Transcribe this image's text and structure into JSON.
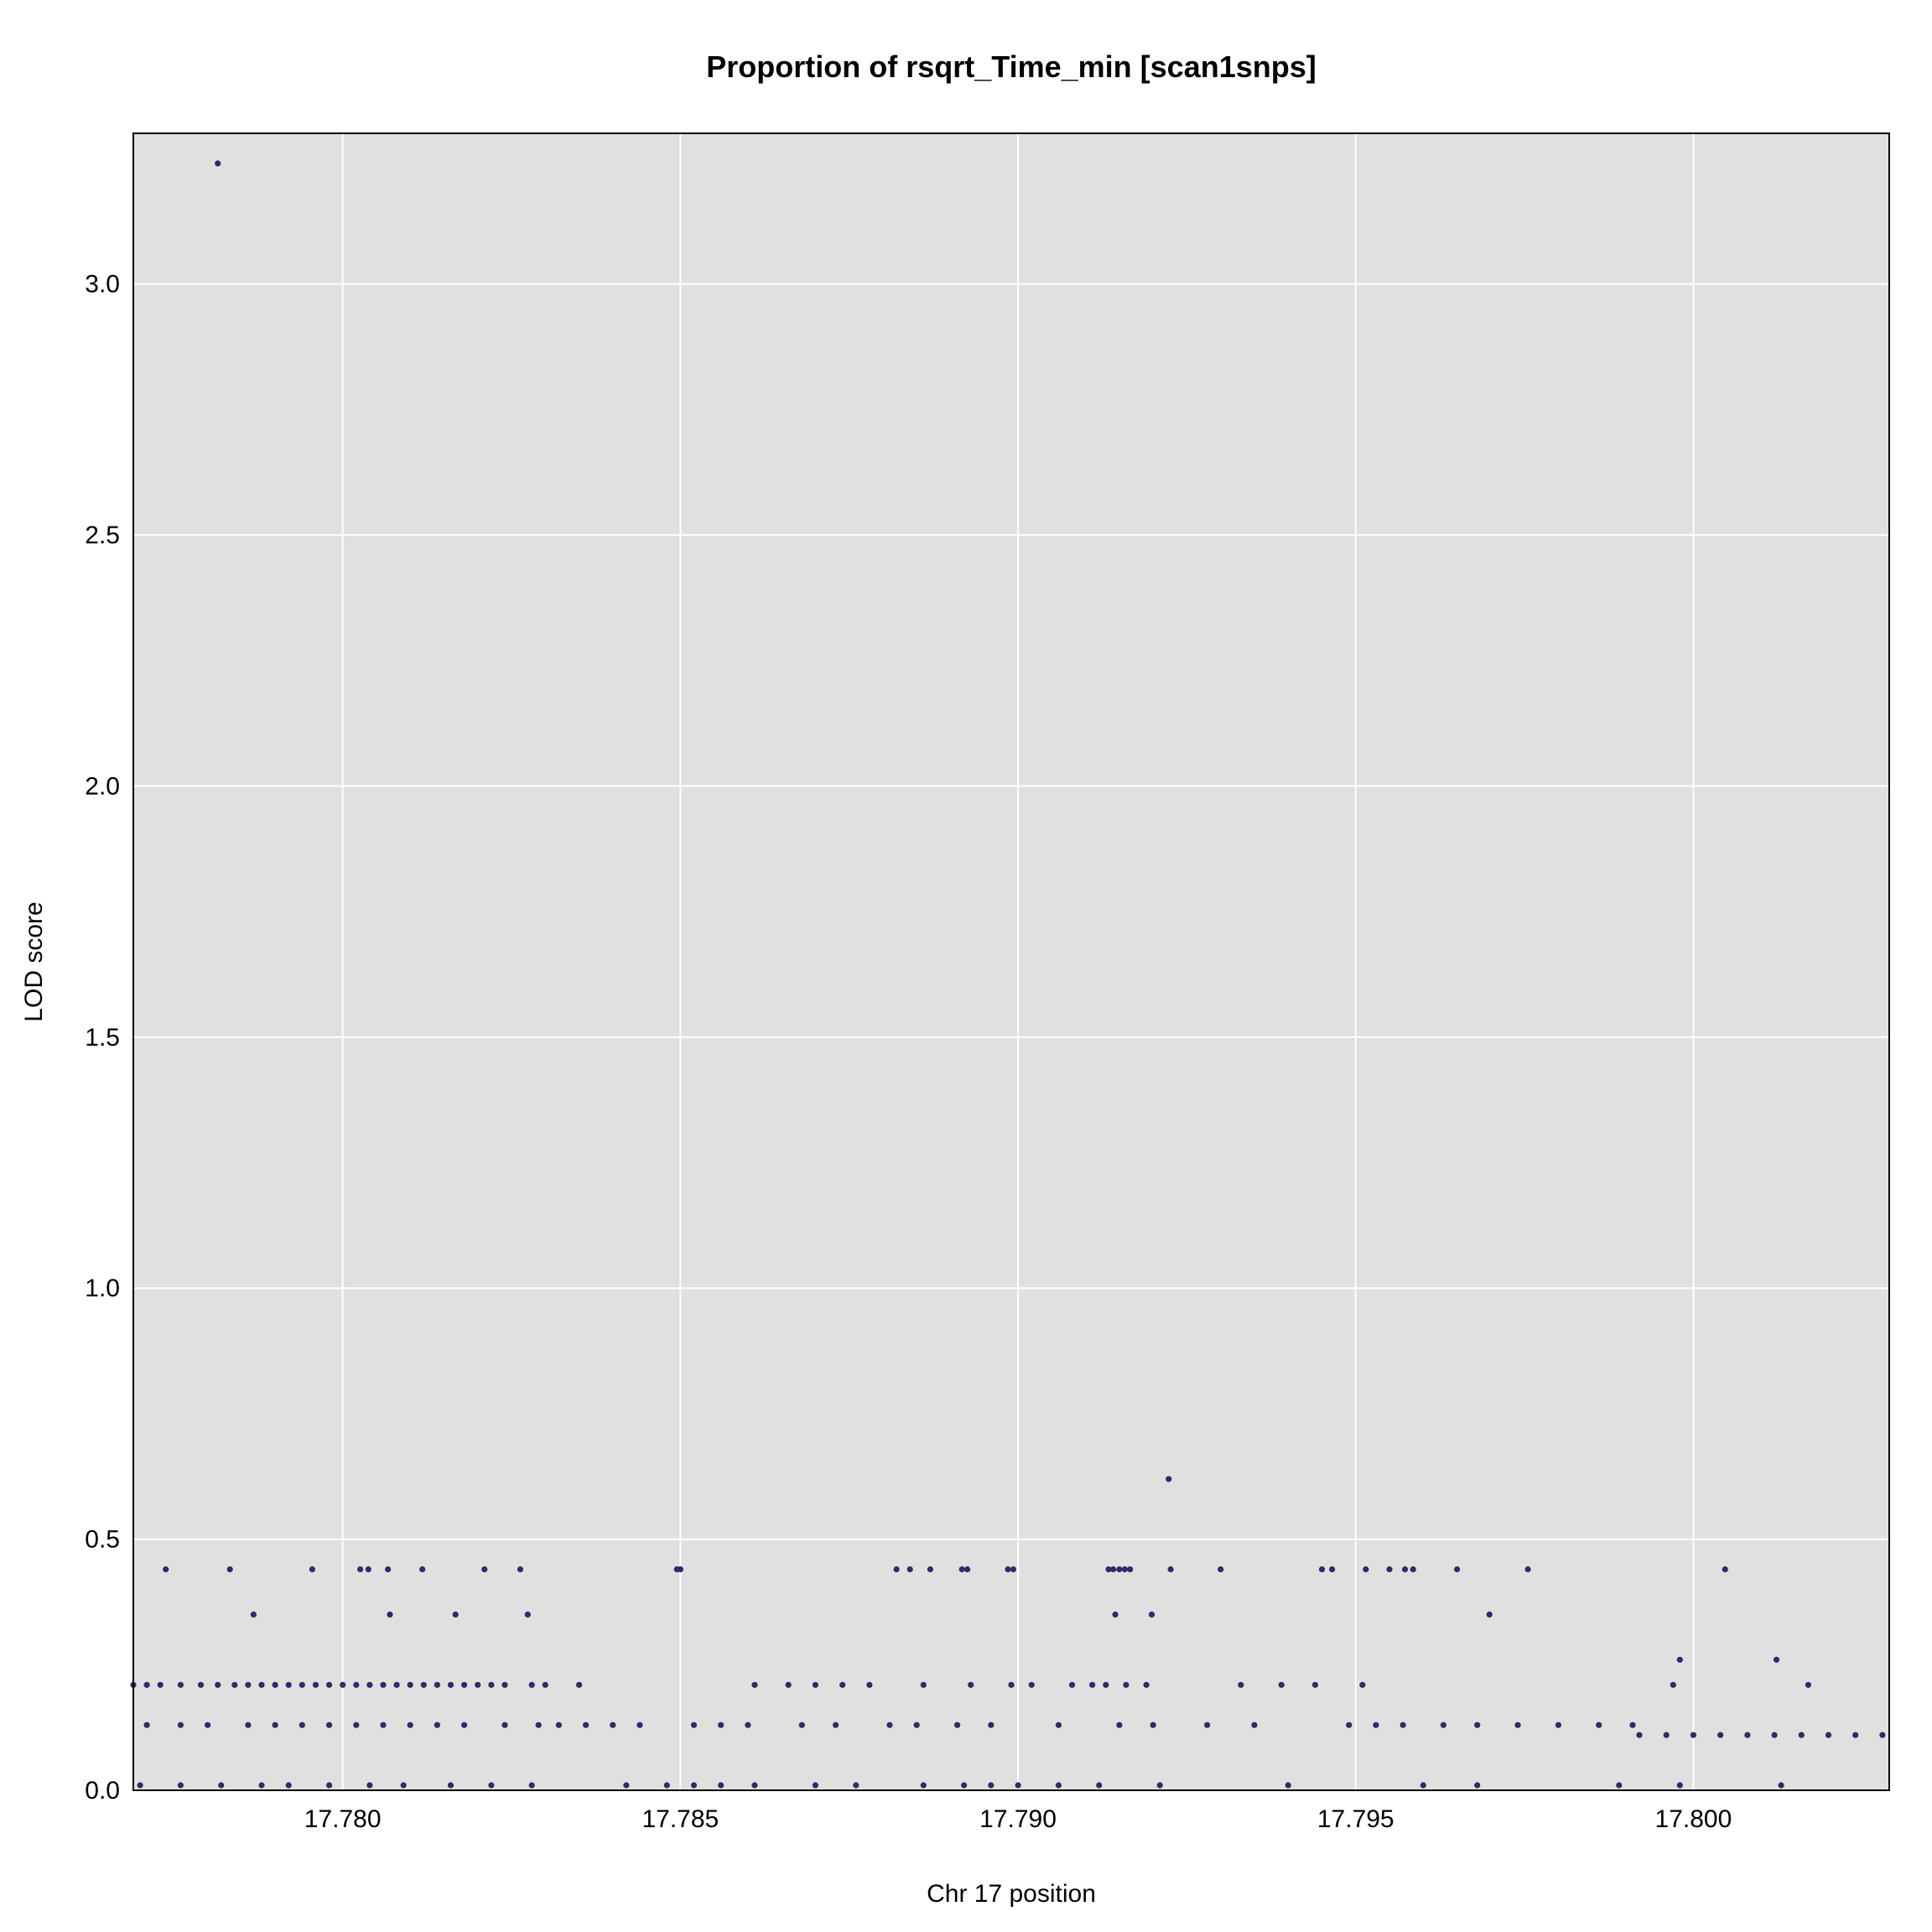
{
  "chart_data": {
    "type": "scatter",
    "title": "Proportion of rsqrt_Time_min [scan1snps]",
    "xlabel": "Chr 17 position",
    "ylabel": "LOD score",
    "xlim": [
      17.7769,
      17.8029
    ],
    "ylim": [
      0.0,
      3.3
    ],
    "xticks": [
      17.78,
      17.785,
      17.79,
      17.795,
      17.8
    ],
    "xtick_labels": [
      "17.780",
      "17.785",
      "17.790",
      "17.795",
      "17.800"
    ],
    "yticks": [
      0.0,
      0.5,
      1.0,
      1.5,
      2.0,
      2.5,
      3.0
    ],
    "ytick_labels": [
      "0.0",
      "0.5",
      "1.0",
      "1.5",
      "2.0",
      "2.5",
      "3.0"
    ],
    "grid": true,
    "legend": "none",
    "colors": {
      "panel_bg": "#e0e0e0",
      "grid": "#ffffff",
      "point": "#2e2a6b",
      "frame": "#000000"
    },
    "series": [
      {
        "points": [
          [
            17.77815,
            3.24
          ],
          [
            17.79223,
            0.62
          ],
          [
            17.77738,
            0.44
          ],
          [
            17.77833,
            0.44
          ],
          [
            17.77955,
            0.44
          ],
          [
            17.78026,
            0.44
          ],
          [
            17.78038,
            0.44
          ],
          [
            17.78067,
            0.44
          ],
          [
            17.78118,
            0.44
          ],
          [
            17.7821,
            0.44
          ],
          [
            17.78263,
            0.44
          ],
          [
            17.78495,
            0.44
          ],
          [
            17.785,
            0.44
          ],
          [
            17.7882,
            0.44
          ],
          [
            17.7884,
            0.44
          ],
          [
            17.7887,
            0.44
          ],
          [
            17.78917,
            0.44
          ],
          [
            17.78925,
            0.44
          ],
          [
            17.78985,
            0.44
          ],
          [
            17.78993,
            0.44
          ],
          [
            17.79134,
            0.44
          ],
          [
            17.79141,
            0.44
          ],
          [
            17.7915,
            0.44
          ],
          [
            17.79158,
            0.44
          ],
          [
            17.79166,
            0.44
          ],
          [
            17.79226,
            0.44
          ],
          [
            17.793,
            0.44
          ],
          [
            17.7945,
            0.44
          ],
          [
            17.79465,
            0.44
          ],
          [
            17.79515,
            0.44
          ],
          [
            17.7955,
            0.44
          ],
          [
            17.79573,
            0.44
          ],
          [
            17.79585,
            0.44
          ],
          [
            17.7965,
            0.44
          ],
          [
            17.79755,
            0.44
          ],
          [
            17.80047,
            0.44
          ],
          [
            17.77868,
            0.35
          ],
          [
            17.7807,
            0.35
          ],
          [
            17.78167,
            0.35
          ],
          [
            17.78274,
            0.35
          ],
          [
            17.79144,
            0.35
          ],
          [
            17.79198,
            0.35
          ],
          [
            17.79698,
            0.35
          ],
          [
            17.7998,
            0.26
          ],
          [
            17.80123,
            0.26
          ],
          [
            17.7769,
            0.21
          ],
          [
            17.7771,
            0.21
          ],
          [
            17.7773,
            0.21
          ],
          [
            17.7776,
            0.21
          ],
          [
            17.7779,
            0.21
          ],
          [
            17.77815,
            0.21
          ],
          [
            17.7784,
            0.21
          ],
          [
            17.7786,
            0.21
          ],
          [
            17.7788,
            0.21
          ],
          [
            17.779,
            0.21
          ],
          [
            17.7792,
            0.21
          ],
          [
            17.7794,
            0.21
          ],
          [
            17.7796,
            0.21
          ],
          [
            17.7798,
            0.21
          ],
          [
            17.78,
            0.21
          ],
          [
            17.7802,
            0.21
          ],
          [
            17.7804,
            0.21
          ],
          [
            17.7806,
            0.21
          ],
          [
            17.7808,
            0.21
          ],
          [
            17.781,
            0.21
          ],
          [
            17.7812,
            0.21
          ],
          [
            17.7814,
            0.21
          ],
          [
            17.7816,
            0.21
          ],
          [
            17.7818,
            0.21
          ],
          [
            17.782,
            0.21
          ],
          [
            17.7822,
            0.21
          ],
          [
            17.7824,
            0.21
          ],
          [
            17.7828,
            0.21
          ],
          [
            17.783,
            0.21
          ],
          [
            17.7835,
            0.21
          ],
          [
            17.7861,
            0.21
          ],
          [
            17.7866,
            0.21
          ],
          [
            17.787,
            0.21
          ],
          [
            17.7874,
            0.21
          ],
          [
            17.7878,
            0.21
          ],
          [
            17.7886,
            0.21
          ],
          [
            17.7893,
            0.21
          ],
          [
            17.7899,
            0.21
          ],
          [
            17.7902,
            0.21
          ],
          [
            17.7908,
            0.21
          ],
          [
            17.7911,
            0.21
          ],
          [
            17.7913,
            0.21
          ],
          [
            17.7916,
            0.21
          ],
          [
            17.7919,
            0.21
          ],
          [
            17.7933,
            0.21
          ],
          [
            17.7939,
            0.21
          ],
          [
            17.7944,
            0.21
          ],
          [
            17.7951,
            0.21
          ],
          [
            17.7997,
            0.21
          ],
          [
            17.8017,
            0.21
          ],
          [
            17.7771,
            0.13
          ],
          [
            17.7776,
            0.13
          ],
          [
            17.778,
            0.13
          ],
          [
            17.7786,
            0.13
          ],
          [
            17.779,
            0.13
          ],
          [
            17.7794,
            0.13
          ],
          [
            17.7798,
            0.13
          ],
          [
            17.7802,
            0.13
          ],
          [
            17.7806,
            0.13
          ],
          [
            17.781,
            0.13
          ],
          [
            17.7814,
            0.13
          ],
          [
            17.7818,
            0.13
          ],
          [
            17.7824,
            0.13
          ],
          [
            17.7829,
            0.13
          ],
          [
            17.7832,
            0.13
          ],
          [
            17.7836,
            0.13
          ],
          [
            17.784,
            0.13
          ],
          [
            17.7844,
            0.13
          ],
          [
            17.7852,
            0.13
          ],
          [
            17.7856,
            0.13
          ],
          [
            17.786,
            0.13
          ],
          [
            17.7868,
            0.13
          ],
          [
            17.7873,
            0.13
          ],
          [
            17.7881,
            0.13
          ],
          [
            17.7885,
            0.13
          ],
          [
            17.7891,
            0.13
          ],
          [
            17.7896,
            0.13
          ],
          [
            17.7906,
            0.13
          ],
          [
            17.7915,
            0.13
          ],
          [
            17.792,
            0.13
          ],
          [
            17.7928,
            0.13
          ],
          [
            17.7935,
            0.13
          ],
          [
            17.7949,
            0.13
          ],
          [
            17.7953,
            0.13
          ],
          [
            17.7957,
            0.13
          ],
          [
            17.7963,
            0.13
          ],
          [
            17.7968,
            0.13
          ],
          [
            17.7974,
            0.13
          ],
          [
            17.798,
            0.13
          ],
          [
            17.7986,
            0.13
          ],
          [
            17.7991,
            0.13
          ],
          [
            17.7992,
            0.11
          ],
          [
            17.7996,
            0.11
          ],
          [
            17.8,
            0.11
          ],
          [
            17.8004,
            0.11
          ],
          [
            17.8008,
            0.11
          ],
          [
            17.8012,
            0.11
          ],
          [
            17.8016,
            0.11
          ],
          [
            17.802,
            0.11
          ],
          [
            17.8024,
            0.11
          ],
          [
            17.8028,
            0.11
          ],
          [
            17.777,
            0.01
          ],
          [
            17.7776,
            0.01
          ],
          [
            17.7782,
            0.01
          ],
          [
            17.7788,
            0.01
          ],
          [
            17.7792,
            0.01
          ],
          [
            17.7798,
            0.01
          ],
          [
            17.7804,
            0.01
          ],
          [
            17.7809,
            0.01
          ],
          [
            17.7816,
            0.01
          ],
          [
            17.7822,
            0.01
          ],
          [
            17.7828,
            0.01
          ],
          [
            17.7842,
            0.01
          ],
          [
            17.7848,
            0.01
          ],
          [
            17.7852,
            0.01
          ],
          [
            17.7856,
            0.01
          ],
          [
            17.7861,
            0.01
          ],
          [
            17.787,
            0.01
          ],
          [
            17.7876,
            0.01
          ],
          [
            17.7886,
            0.01
          ],
          [
            17.7892,
            0.01
          ],
          [
            17.7896,
            0.01
          ],
          [
            17.79,
            0.01
          ],
          [
            17.7906,
            0.01
          ],
          [
            17.7912,
            0.01
          ],
          [
            17.7921,
            0.01
          ],
          [
            17.794,
            0.01
          ],
          [
            17.796,
            0.01
          ],
          [
            17.7968,
            0.01
          ],
          [
            17.7989,
            0.01
          ],
          [
            17.7998,
            0.01
          ],
          [
            17.8013,
            0.01
          ]
        ]
      }
    ]
  }
}
